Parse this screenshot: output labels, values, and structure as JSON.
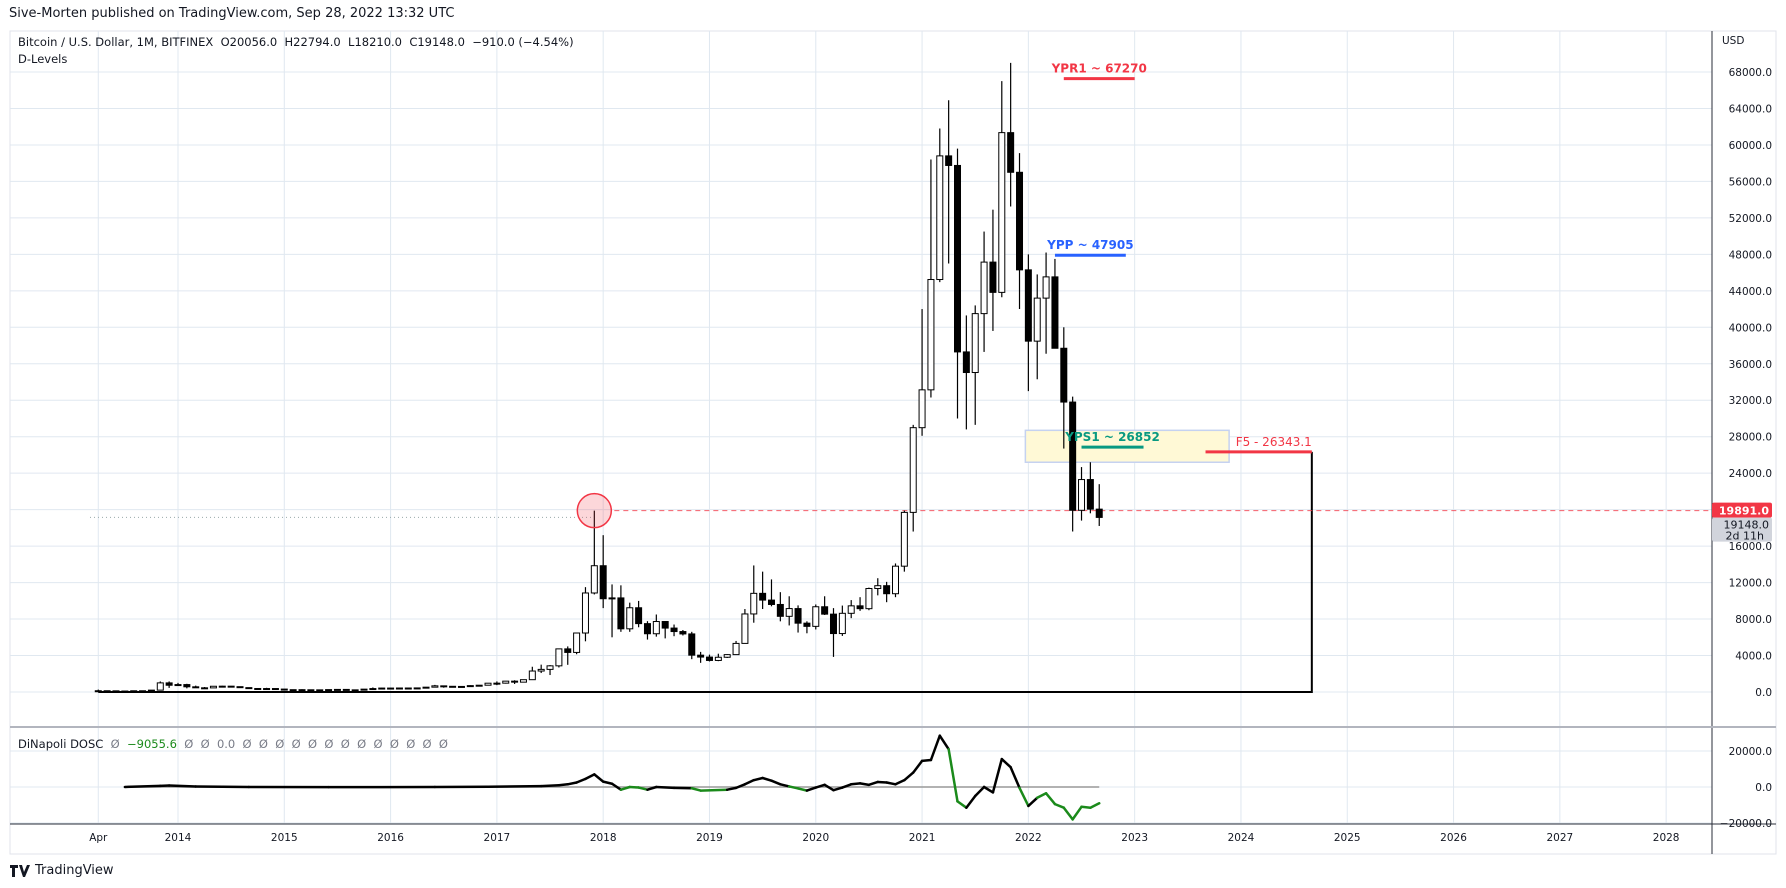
{
  "header": {
    "published": "Sive-Morten published on TradingView.com, Sep 28, 2022 13:32 UTC"
  },
  "legend": {
    "symbol": "Bitcoin / U.S. Dollar, 1M, BITFINEX",
    "open": "O20056.0",
    "high": "H22794.0",
    "low": "L18210.0",
    "close": "C19148.0",
    "change": "−910.0 (−4.54%)",
    "study": "D-Levels"
  },
  "indicator_legend": {
    "name": "DiNapoli DOSC",
    "value": "−9055.6",
    "zero": "0.0",
    "null_glyph": "Ø"
  },
  "footer": {
    "brand": "TradingView"
  },
  "colors": {
    "up_body": "#ffffff",
    "down_body": "#000000",
    "grid": "#e0e8f0",
    "red": "#f23645",
    "blue": "#2962ff",
    "teal": "#089981",
    "zone": "#fff9d6",
    "dosc_up": "#000000",
    "dosc_down": "#1b8a1b"
  },
  "chart_data": {
    "type": "candlestick",
    "timeframe": "1M",
    "currency_label": "USD",
    "ylim": [
      0,
      70000
    ],
    "y_ticks": [
      "68000.0",
      "64000.0",
      "60000.0",
      "56000.0",
      "52000.0",
      "48000.0",
      "44000.0",
      "40000.0",
      "36000.0",
      "32000.0",
      "28000.0",
      "24000.0",
      "16000.0",
      "12000.0",
      "8000.0",
      "4000.0",
      "0.0"
    ],
    "y_tick_values": [
      68000,
      64000,
      60000,
      56000,
      52000,
      48000,
      44000,
      40000,
      36000,
      32000,
      28000,
      24000,
      16000,
      12000,
      8000,
      4000,
      0
    ],
    "x_ticks": [
      {
        "label": "Apr",
        "date": "2013-04"
      },
      {
        "label": "2014",
        "date": "2014-01"
      },
      {
        "label": "2015",
        "date": "2015-01"
      },
      {
        "label": "2016",
        "date": "2016-01"
      },
      {
        "label": "2017",
        "date": "2017-01"
      },
      {
        "label": "2018",
        "date": "2018-01"
      },
      {
        "label": "2019",
        "date": "2019-01"
      },
      {
        "label": "2020",
        "date": "2020-01"
      },
      {
        "label": "2021",
        "date": "2021-01"
      },
      {
        "label": "2022",
        "date": "2022-01"
      },
      {
        "label": "2023",
        "date": "2023-01"
      },
      {
        "label": "2024",
        "date": "2024-01"
      },
      {
        "label": "2025",
        "date": "2025-01"
      },
      {
        "label": "2026",
        "date": "2026-01"
      },
      {
        "label": "2027",
        "date": "2027-01"
      },
      {
        "label": "2028",
        "date": "2028-01"
      }
    ],
    "price_tags": [
      {
        "label": "19891.0",
        "value": 19891,
        "style": "red"
      },
      {
        "label": "19148.0",
        "sub": "2d 11h",
        "value": 19148,
        "style": "grey"
      }
    ],
    "levels": [
      {
        "label": "YPR1 ~ 67270",
        "value": 67270,
        "color": "red",
        "from": "2022-05",
        "to": "2023-01"
      },
      {
        "label": "YPP ~ 47905",
        "value": 47905,
        "color": "blue",
        "from": "2022-04",
        "to": "2022-12"
      },
      {
        "label": "YPS1 ~ 26852",
        "value": 26852,
        "color": "teal",
        "from": "2022-07",
        "to": "2023-02"
      },
      {
        "label": "F5 - 26343.1",
        "value": 26343.1,
        "color": "red",
        "from": "2023-09",
        "to": "2024-09"
      }
    ],
    "zone": {
      "from": "2022-01",
      "to": "2023-12",
      "low": 25200,
      "high": 28700
    },
    "box_line": {
      "from": "2013-04",
      "to": "2024-09",
      "top": 26343.1,
      "bottom": 0
    },
    "ath_marker": {
      "date": "2017-12",
      "value": 19891
    },
    "ohlc": [
      [
        "2013-04",
        93,
        266,
        50,
        139
      ],
      [
        "2013-05",
        139,
        140,
        79,
        128
      ],
      [
        "2013-06",
        128,
        130,
        88,
        97
      ],
      [
        "2013-07",
        97,
        110,
        65,
        106
      ],
      [
        "2013-08",
        106,
        130,
        100,
        135
      ],
      [
        "2013-09",
        135,
        145,
        110,
        133
      ],
      [
        "2013-10",
        133,
        215,
        105,
        205
      ],
      [
        "2013-11",
        205,
        1160,
        205,
        1000
      ],
      [
        "2013-12",
        1000,
        1160,
        450,
        740
      ],
      [
        "2014-01",
        740,
        1000,
        740,
        815
      ],
      [
        "2014-02",
        815,
        900,
        400,
        570
      ],
      [
        "2014-03",
        570,
        700,
        440,
        460
      ],
      [
        "2014-04",
        460,
        550,
        340,
        450
      ],
      [
        "2014-05",
        450,
        630,
        440,
        630
      ],
      [
        "2014-06",
        630,
        680,
        550,
        640
      ],
      [
        "2014-07",
        640,
        660,
        570,
        585
      ],
      [
        "2014-08",
        585,
        600,
        440,
        480
      ],
      [
        "2014-09",
        480,
        490,
        360,
        385
      ],
      [
        "2014-10",
        385,
        420,
        275,
        340
      ],
      [
        "2014-11",
        340,
        460,
        320,
        380
      ],
      [
        "2014-12",
        380,
        390,
        310,
        320
      ],
      [
        "2015-01",
        320,
        320,
        160,
        218
      ],
      [
        "2015-02",
        218,
        270,
        210,
        255
      ],
      [
        "2015-03",
        255,
        300,
        240,
        245
      ],
      [
        "2015-04",
        245,
        260,
        215,
        236
      ],
      [
        "2015-05",
        236,
        250,
        225,
        230
      ],
      [
        "2015-06",
        230,
        270,
        220,
        263
      ],
      [
        "2015-07",
        263,
        320,
        255,
        284
      ],
      [
        "2015-08",
        284,
        285,
        200,
        230
      ],
      [
        "2015-09",
        230,
        245,
        225,
        236
      ],
      [
        "2015-10",
        236,
        330,
        235,
        313
      ],
      [
        "2015-11",
        313,
        500,
        300,
        377
      ],
      [
        "2015-12",
        377,
        465,
        355,
        431
      ],
      [
        "2016-01",
        431,
        460,
        355,
        369
      ],
      [
        "2016-02",
        369,
        445,
        365,
        437
      ],
      [
        "2016-03",
        437,
        440,
        405,
        416
      ],
      [
        "2016-04",
        416,
        470,
        415,
        448
      ],
      [
        "2016-05",
        448,
        550,
        440,
        530
      ],
      [
        "2016-06",
        530,
        780,
        530,
        675
      ],
      [
        "2016-07",
        675,
        690,
        470,
        625
      ],
      [
        "2016-08",
        625,
        625,
        515,
        575
      ],
      [
        "2016-09",
        575,
        615,
        570,
        610
      ],
      [
        "2016-10",
        610,
        735,
        605,
        700
      ],
      [
        "2016-11",
        700,
        755,
        690,
        745
      ],
      [
        "2016-12",
        745,
        980,
        745,
        965
      ],
      [
        "2017-01",
        965,
        1160,
        750,
        970
      ],
      [
        "2017-02",
        970,
        1210,
        920,
        1190
      ],
      [
        "2017-03",
        1190,
        1290,
        880,
        1080
      ],
      [
        "2017-04",
        1080,
        1370,
        1060,
        1350
      ],
      [
        "2017-05",
        1350,
        2770,
        1350,
        2300
      ],
      [
        "2017-06",
        2300,
        3000,
        2080,
        2480
      ],
      [
        "2017-07",
        2480,
        2950,
        1860,
        2870
      ],
      [
        "2017-08",
        2870,
        4750,
        2690,
        4730
      ],
      [
        "2017-09",
        4730,
        5000,
        2980,
        4340
      ],
      [
        "2017-10",
        4340,
        6470,
        4140,
        6470
      ],
      [
        "2017-11",
        6470,
        11500,
        5560,
        10860
      ],
      [
        "2017-12",
        10860,
        19891,
        10700,
        13850
      ],
      [
        "2018-01",
        13850,
        17200,
        9200,
        10230
      ],
      [
        "2018-02",
        10230,
        11800,
        6000,
        10320
      ],
      [
        "2018-03",
        10320,
        11700,
        6600,
        6930
      ],
      [
        "2018-04",
        6930,
        9800,
        6600,
        9240
      ],
      [
        "2018-05",
        9240,
        9990,
        7100,
        7500
      ],
      [
        "2018-06",
        7500,
        7770,
        5750,
        6390
      ],
      [
        "2018-07",
        6390,
        8500,
        6070,
        7730
      ],
      [
        "2018-08",
        7730,
        7760,
        5880,
        7010
      ],
      [
        "2018-09",
        7010,
        7400,
        6120,
        6630
      ],
      [
        "2018-10",
        6630,
        6800,
        6200,
        6370
      ],
      [
        "2018-11",
        6370,
        6600,
        3600,
        4040
      ],
      [
        "2018-12",
        4040,
        4400,
        3200,
        3830
      ],
      [
        "2019-01",
        3830,
        4100,
        3350,
        3460
      ],
      [
        "2019-02",
        3460,
        4200,
        3380,
        3810
      ],
      [
        "2019-03",
        3810,
        4150,
        3730,
        4100
      ],
      [
        "2019-04",
        4100,
        5600,
        4100,
        5330
      ],
      [
        "2019-05",
        5330,
        9100,
        5330,
        8560
      ],
      [
        "2019-06",
        8560,
        13880,
        7600,
        10820
      ],
      [
        "2019-07",
        10820,
        13200,
        9100,
        10080
      ],
      [
        "2019-08",
        10080,
        12350,
        9400,
        9600
      ],
      [
        "2019-09",
        9600,
        10950,
        7750,
        8300
      ],
      [
        "2019-10",
        8300,
        10500,
        7300,
        9150
      ],
      [
        "2019-11",
        9150,
        9500,
        6520,
        7550
      ],
      [
        "2019-12",
        7550,
        7750,
        6440,
        7200
      ],
      [
        "2020-01",
        7200,
        9600,
        6860,
        9350
      ],
      [
        "2020-02",
        9350,
        10500,
        8450,
        8540
      ],
      [
        "2020-03",
        8540,
        9200,
        3850,
        6410
      ],
      [
        "2020-04",
        6410,
        9480,
        6150,
        8630
      ],
      [
        "2020-05",
        8630,
        10080,
        8100,
        9450
      ],
      [
        "2020-06",
        9450,
        10400,
        8900,
        9140
      ],
      [
        "2020-07",
        9140,
        11450,
        8970,
        11350
      ],
      [
        "2020-08",
        11350,
        12480,
        10600,
        11660
      ],
      [
        "2020-09",
        11660,
        12080,
        9850,
        10780
      ],
      [
        "2020-10",
        10780,
        14100,
        10400,
        13800
      ],
      [
        "2020-11",
        13800,
        19900,
        13200,
        19700
      ],
      [
        "2020-12",
        19700,
        29300,
        17600,
        28990
      ],
      [
        "2021-01",
        28990,
        42000,
        28100,
        33140
      ],
      [
        "2021-02",
        33140,
        58400,
        32300,
        45240
      ],
      [
        "2021-03",
        45240,
        61800,
        44950,
        58800
      ],
      [
        "2021-04",
        58800,
        64900,
        47000,
        57750
      ],
      [
        "2021-05",
        57750,
        59600,
        30000,
        37300
      ],
      [
        "2021-06",
        37300,
        41300,
        28800,
        35040
      ],
      [
        "2021-07",
        35040,
        42400,
        29300,
        41500
      ],
      [
        "2021-08",
        41500,
        50500,
        37300,
        47150
      ],
      [
        "2021-09",
        47150,
        52900,
        39600,
        43830
      ],
      [
        "2021-10",
        43830,
        67000,
        43300,
        61350
      ],
      [
        "2021-11",
        61350,
        69000,
        53250,
        57000
      ],
      [
        "2021-12",
        57000,
        59100,
        42000,
        46300
      ],
      [
        "2022-01",
        46300,
        48000,
        33000,
        38480
      ],
      [
        "2022-02",
        38480,
        45800,
        34300,
        43200
      ],
      [
        "2022-03",
        43200,
        48200,
        37100,
        45530
      ],
      [
        "2022-04",
        45530,
        47500,
        37700,
        37700
      ],
      [
        "2022-05",
        37700,
        40000,
        26700,
        31800
      ],
      [
        "2022-06",
        31800,
        32400,
        17600,
        19930
      ],
      [
        "2022-07",
        19930,
        24670,
        18800,
        23300
      ],
      [
        "2022-08",
        23300,
        25200,
        19600,
        20056
      ],
      [
        "2022-09",
        20056,
        22794,
        18210,
        19148
      ]
    ],
    "dosc": {
      "y_ticks": [
        "20000.0",
        "0.0",
        "−20000.0"
      ],
      "y_tick_values": [
        20000,
        0,
        -20000
      ],
      "ylim": [
        -20000,
        30000
      ],
      "zero_line_to": "2022-09",
      "points": [
        [
          "2013-07",
          0,
          "k"
        ],
        [
          "2013-11",
          600,
          "k"
        ],
        [
          "2013-12",
          800,
          "k"
        ],
        [
          "2014-03",
          300,
          "k"
        ],
        [
          "2014-09",
          0,
          "k"
        ],
        [
          "2015-06",
          -100,
          "k"
        ],
        [
          "2016-06",
          0,
          "k"
        ],
        [
          "2016-12",
          150,
          "k"
        ],
        [
          "2017-06",
          500,
          "k"
        ],
        [
          "2017-08",
          1000,
          "k"
        ],
        [
          "2017-09",
          1500,
          "k"
        ],
        [
          "2017-10",
          2500,
          "k"
        ],
        [
          "2017-11",
          4500,
          "k"
        ],
        [
          "2017-12",
          7000,
          "k"
        ],
        [
          "2018-01",
          3000,
          "k"
        ],
        [
          "2018-02",
          1800,
          "k"
        ],
        [
          "2018-03",
          -1500,
          "k"
        ],
        [
          "2018-04",
          0,
          "g"
        ],
        [
          "2018-05",
          -300,
          "g"
        ],
        [
          "2018-06",
          -1500,
          "g"
        ],
        [
          "2018-07",
          0,
          "k"
        ],
        [
          "2018-09",
          -500,
          "k"
        ],
        [
          "2018-11",
          -700,
          "k"
        ],
        [
          "2018-12",
          -2000,
          "g"
        ],
        [
          "2019-03",
          -1500,
          "g"
        ],
        [
          "2019-04",
          -500,
          "k"
        ],
        [
          "2019-05",
          1500,
          "k"
        ],
        [
          "2019-06",
          3800,
          "k"
        ],
        [
          "2019-07",
          5000,
          "k"
        ],
        [
          "2019-08",
          3500,
          "k"
        ],
        [
          "2019-09",
          1500,
          "k"
        ],
        [
          "2019-10",
          300,
          "k"
        ],
        [
          "2019-11",
          -800,
          "g"
        ],
        [
          "2019-12",
          -2000,
          "g"
        ],
        [
          "2020-01",
          -300,
          "k"
        ],
        [
          "2020-02",
          1200,
          "k"
        ],
        [
          "2020-03",
          -1800,
          "k"
        ],
        [
          "2020-04",
          -300,
          "k"
        ],
        [
          "2020-05",
          1500,
          "k"
        ],
        [
          "2020-06",
          2000,
          "k"
        ],
        [
          "2020-07",
          1200,
          "k"
        ],
        [
          "2020-08",
          2800,
          "k"
        ],
        [
          "2020-09",
          2500,
          "k"
        ],
        [
          "2020-10",
          1500,
          "k"
        ],
        [
          "2020-11",
          3800,
          "k"
        ],
        [
          "2020-12",
          8000,
          "k"
        ],
        [
          "2021-01",
          14500,
          "k"
        ],
        [
          "2021-02",
          15000,
          "k"
        ],
        [
          "2021-03",
          28500,
          "k"
        ],
        [
          "2021-04",
          21000,
          "k"
        ],
        [
          "2021-05",
          -8000,
          "g"
        ],
        [
          "2021-06",
          -11500,
          "g"
        ],
        [
          "2021-07",
          -5000,
          "k"
        ],
        [
          "2021-08",
          0,
          "k"
        ],
        [
          "2021-09",
          -3000,
          "k"
        ],
        [
          "2021-10",
          15500,
          "k"
        ],
        [
          "2021-11",
          11000,
          "k"
        ],
        [
          "2021-12",
          -500,
          "k"
        ],
        [
          "2022-01",
          -10500,
          "g"
        ],
        [
          "2022-02",
          -6000,
          "k"
        ],
        [
          "2022-03",
          -3500,
          "g"
        ],
        [
          "2022-04",
          -9500,
          "g"
        ],
        [
          "2022-05",
          -11500,
          "g"
        ],
        [
          "2022-06",
          -18000,
          "g"
        ],
        [
          "2022-07",
          -11000,
          "g"
        ],
        [
          "2022-08",
          -11500,
          "g"
        ],
        [
          "2022-09",
          -9055.6,
          "g"
        ]
      ]
    }
  }
}
